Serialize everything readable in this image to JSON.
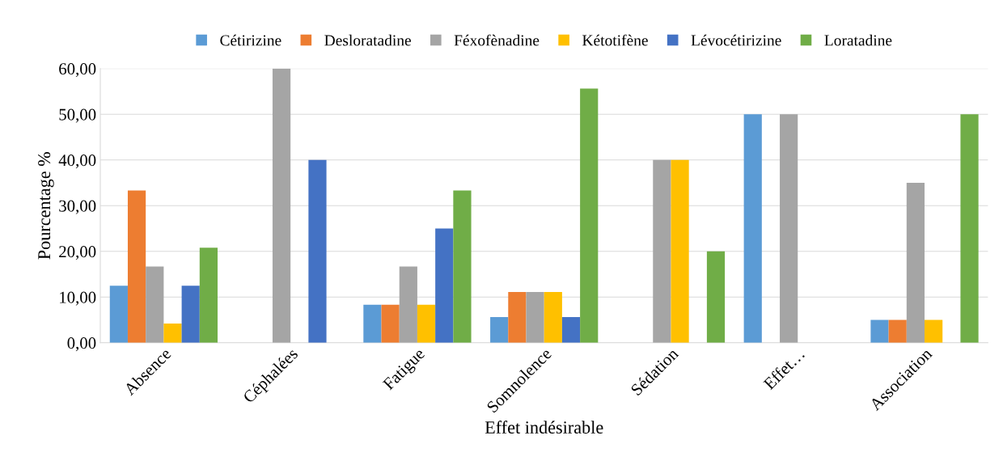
{
  "chart_data": {
    "type": "bar",
    "xlabel": "Effet indésirable",
    "ylabel": "Pourcentage %",
    "categories": [
      "Absence",
      "Céphalées",
      "Fatigue",
      "Somnolence",
      "Sédation",
      "Effet…",
      "Association"
    ],
    "series": [
      {
        "name": "Cétirizine",
        "color": "#5b9bd5",
        "values": [
          12.5,
          0,
          8.3,
          5.6,
          0,
          50,
          5
        ]
      },
      {
        "name": "Desloratadine",
        "color": "#ed7d31",
        "values": [
          33.3,
          0,
          8.3,
          11.1,
          0,
          0,
          5
        ]
      },
      {
        "name": "Féxofènadine",
        "color": "#a5a5a5",
        "values": [
          16.7,
          60,
          16.7,
          11.1,
          40,
          50,
          35
        ]
      },
      {
        "name": "Kétotifène",
        "color": "#ffc000",
        "values": [
          4.2,
          0,
          8.3,
          11.1,
          40,
          0,
          5
        ]
      },
      {
        "name": "Lévocétirizine",
        "color": "#4472c4",
        "values": [
          12.5,
          40,
          25,
          5.6,
          0,
          0,
          0
        ]
      },
      {
        "name": "Loratadine",
        "color": "#70ad47",
        "values": [
          20.8,
          0,
          33.3,
          55.6,
          20,
          0,
          50
        ]
      }
    ],
    "ylim": [
      0,
      60
    ],
    "yticks": [
      {
        "value": 0,
        "label": "0,00"
      },
      {
        "value": 10,
        "label": "10,00"
      },
      {
        "value": 20,
        "label": "20,00"
      },
      {
        "value": 30,
        "label": "30,00"
      },
      {
        "value": 40,
        "label": "40,00"
      },
      {
        "value": 50,
        "label": "50,00"
      },
      {
        "value": 60,
        "label": "60,00"
      }
    ],
    "grid": "y",
    "legend": "top"
  }
}
